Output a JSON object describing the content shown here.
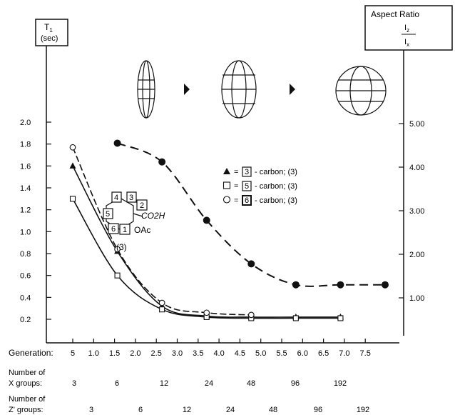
{
  "chart_data": {
    "type": "scatter",
    "left_axis": {
      "title_main": "T",
      "title_sub": "1",
      "title_unit": "(sec)",
      "ylim": [
        0,
        2.0
      ],
      "ticks": [
        "0.2",
        "0.4",
        "0.6",
        "0.8",
        "1.0",
        "1.2",
        "1.4",
        "1.6",
        "1.8",
        "2.0"
      ]
    },
    "right_axis": {
      "title": "Aspect Ratio",
      "ratio_num": "I",
      "ratio_num_sub": "z",
      "ratio_den": "I",
      "ratio_den_sub": "x",
      "ylim": [
        0,
        5.3
      ],
      "ticks": [
        "1.00",
        "2.00",
        "3.00",
        "4.00",
        "5.00"
      ]
    },
    "x_axis": {
      "label": "Generation:",
      "xlim": [
        4.5,
        8.0
      ],
      "ticks": [
        "5",
        "1.0",
        "1.5",
        "2.0",
        "2.5",
        "3.0",
        "3.5",
        "4.0",
        "4.5",
        "5.0",
        "5.5",
        "6.0",
        "6.5",
        "7.0",
        "7.5"
      ]
    },
    "x_groups": {
      "label_line1": "Number of",
      "label_line2": "X groups:",
      "values": [
        "3",
        "6",
        "12",
        "24",
        "48",
        "96",
        "192"
      ]
    },
    "z_groups": {
      "label_line1": "Number of",
      "label_line2": "Z' groups:",
      "values": [
        "3",
        "6",
        "12",
        "24",
        "48",
        "96",
        "192"
      ]
    },
    "legend": [
      {
        "marker": "triangle",
        "sym": "▲",
        "eq": "=",
        "num": "3",
        "text": "- carbon; (3)"
      },
      {
        "marker": "square",
        "sym": "□",
        "eq": "=",
        "num": "5",
        "text": "- carbon; (3)"
      },
      {
        "marker": "circle",
        "sym": "○",
        "eq": "=",
        "num": "6",
        "text": "- carbon; (3)"
      }
    ],
    "series": [
      {
        "name": "3 - carbon; (3)",
        "marker": "triangle",
        "axis": "left",
        "x": [
          4.5,
          5.0,
          5.5,
          6.0,
          6.5,
          7.0,
          7.5
        ],
        "y": [
          1.6,
          0.82,
          0.32,
          0.23,
          0.22,
          0.22,
          0.22
        ]
      },
      {
        "name": "5 - carbon; (3)",
        "marker": "square",
        "axis": "left",
        "x": [
          4.5,
          5.0,
          5.5,
          6.0,
          6.5,
          7.0,
          7.5
        ],
        "y": [
          1.3,
          0.6,
          0.29,
          0.22,
          0.21,
          0.21,
          0.21
        ]
      },
      {
        "name": "6 - carbon; (3)",
        "marker": "circle",
        "axis": "left",
        "x": [
          4.5,
          5.0,
          5.5,
          6.0,
          6.5
        ],
        "y": [
          1.77,
          0.84,
          0.35,
          0.26,
          0.24
        ]
      },
      {
        "name": "Aspect Ratio",
        "marker": "filled-circle",
        "axis": "right",
        "x": [
          5.0,
          5.5,
          6.0,
          6.5,
          7.0,
          7.5,
          8.0
        ],
        "y": [
          4.55,
          4.12,
          2.78,
          1.78,
          1.3,
          1.3,
          1.3
        ]
      }
    ],
    "structure": {
      "labels": [
        "4",
        "3",
        "2",
        "5",
        "6",
        "1"
      ],
      "co2h": "CO2H",
      "oac": "OAc",
      "compound": "(3)"
    },
    "top_icons": [
      "ellipsoid-tall-icon",
      "arrow-right-icon",
      "ellipsoid-mid-icon",
      "arrow-right-icon",
      "sphere-icon"
    ]
  }
}
